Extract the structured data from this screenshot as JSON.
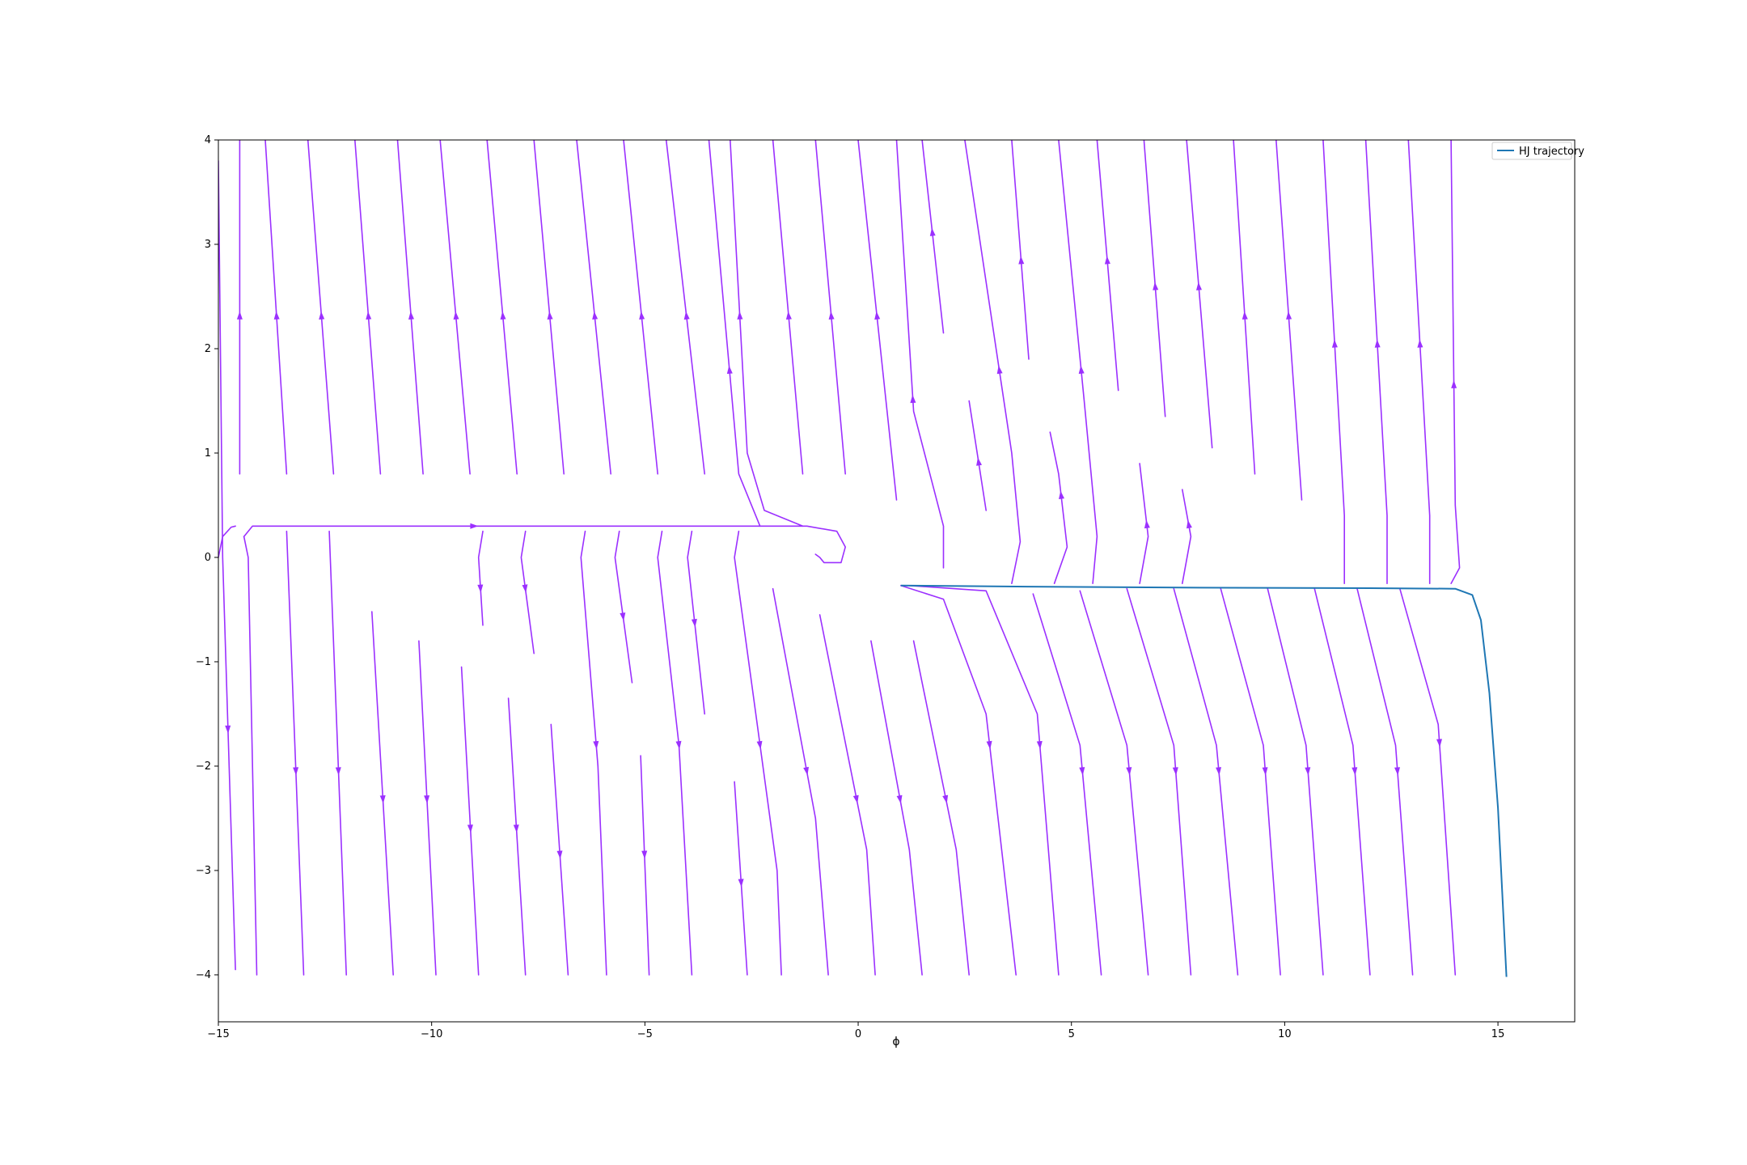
{
  "chart_data": {
    "type": "line",
    "title": "",
    "xlabel": "ϕ",
    "ylabel": "",
    "xlim": [
      -15,
      16.8
    ],
    "ylim": [
      -4.45,
      4
    ],
    "grid": false,
    "legend_position": "top-right",
    "x_ticks": [
      -15,
      -10,
      -5,
      0,
      5,
      10,
      15
    ],
    "x_tick_labels": [
      "−15",
      "−10",
      "−5",
      "0",
      "5",
      "10",
      "15"
    ],
    "y_ticks": [
      -4,
      -3,
      -2,
      -1,
      0,
      1,
      2,
      3,
      4
    ],
    "y_tick_labels": [
      "−4",
      "−3",
      "−2",
      "−1",
      "0",
      "1",
      "2",
      "3",
      "4"
    ],
    "streamline_color": "#9b30ff",
    "series": [
      {
        "name": "HJ trajectory",
        "color": "#1f77b4",
        "x": [
          1.0,
          4.0,
          8.0,
          12.0,
          14.0,
          14.4,
          14.6,
          14.8,
          15.0,
          15.1,
          15.2
        ],
        "y": [
          -0.27,
          -0.28,
          -0.29,
          -0.295,
          -0.3,
          -0.36,
          -0.6,
          -1.3,
          -2.4,
          -3.2,
          -4.02
        ]
      }
    ],
    "streamlines": [
      {
        "x": [
          -14.5,
          -14.5
        ],
        "y": [
          0.8,
          4.0
        ],
        "arrow_y": 2.32
      },
      {
        "x": [
          -13.4,
          -13.9
        ],
        "y": [
          0.8,
          4.0
        ],
        "arrow_y": 2.32
      },
      {
        "x": [
          -12.3,
          -12.9
        ],
        "y": [
          0.8,
          4.0
        ],
        "arrow_y": 2.32
      },
      {
        "x": [
          -11.2,
          -11.8
        ],
        "y": [
          0.8,
          4.0
        ],
        "arrow_y": 2.32
      },
      {
        "x": [
          -10.2,
          -10.8
        ],
        "y": [
          0.8,
          4.0
        ],
        "arrow_y": 2.32
      },
      {
        "x": [
          -9.1,
          -9.8
        ],
        "y": [
          0.8,
          4.0
        ],
        "arrow_y": 2.32
      },
      {
        "x": [
          -8.0,
          -8.7
        ],
        "y": [
          0.8,
          4.0
        ],
        "arrow_y": 2.32
      },
      {
        "x": [
          -6.9,
          -7.6
        ],
        "y": [
          0.8,
          4.0
        ],
        "arrow_y": 2.32
      },
      {
        "x": [
          -5.8,
          -6.6
        ],
        "y": [
          0.8,
          4.0
        ],
        "arrow_y": 2.32
      },
      {
        "x": [
          -4.7,
          -5.5
        ],
        "y": [
          0.8,
          4.0
        ],
        "arrow_y": 2.32
      },
      {
        "x": [
          -3.6,
          -4.5
        ],
        "y": [
          0.8,
          4.0
        ],
        "arrow_y": 2.32
      },
      {
        "x": [
          -2.3,
          -2.8,
          -3.5
        ],
        "y": [
          0.3,
          0.8,
          4.0
        ],
        "arrow_y": 1.8
      },
      {
        "x": [
          -1.3,
          -2.2,
          -2.6,
          -3.0
        ],
        "y": [
          0.3,
          0.45,
          1.0,
          4.0
        ],
        "arrow_y": 2.32
      },
      {
        "x": [
          -1.3,
          -2.0
        ],
        "y": [
          0.8,
          4.0
        ],
        "arrow_y": 2.32
      },
      {
        "x": [
          -0.3,
          -1.0
        ],
        "y": [
          0.8,
          4.0
        ],
        "arrow_y": 2.32
      },
      {
        "x": [
          0.9,
          0.0
        ],
        "y": [
          0.55,
          4.0
        ],
        "arrow_y": 2.32
      },
      {
        "x": [
          2.0,
          2.0,
          1.3,
          0.9
        ],
        "y": [
          -0.1,
          0.3,
          1.4,
          4.0
        ],
        "arrow_y": 1.52
      },
      {
        "x": [
          2.0,
          1.5
        ],
        "y": [
          2.15,
          4.0
        ],
        "arrow_y": 3.12
      },
      {
        "x": [
          3.0,
          2.6
        ],
        "y": [
          0.45,
          1.5
        ],
        "arrow_y": 0.92
      },
      {
        "x": [
          3.6,
          3.8,
          3.6,
          2.5
        ],
        "y": [
          -0.25,
          0.15,
          1.0,
          4.0
        ],
        "arrow_y": 1.8
      },
      {
        "x": [
          4.0,
          3.6
        ],
        "y": [
          1.9,
          4.0
        ],
        "arrow_y": 2.85
      },
      {
        "x": [
          4.6,
          4.9,
          4.7,
          4.5
        ],
        "y": [
          -0.25,
          0.1,
          0.8,
          1.2
        ],
        "arrow_y": 0.6
      },
      {
        "x": [
          5.5,
          5.6,
          5.3,
          4.7
        ],
        "y": [
          -0.25,
          0.2,
          1.5,
          4.0
        ],
        "arrow_y": 1.8
      },
      {
        "x": [
          6.1,
          5.6
        ],
        "y": [
          1.6,
          4.0
        ],
        "arrow_y": 2.85
      },
      {
        "x": [
          6.6,
          6.8,
          6.6
        ],
        "y": [
          -0.25,
          0.2,
          0.9
        ],
        "arrow_y": 0.32
      },
      {
        "x": [
          7.2,
          6.7
        ],
        "y": [
          1.35,
          4.0
        ],
        "arrow_y": 2.6
      },
      {
        "x": [
          7.6,
          7.8,
          7.6
        ],
        "y": [
          -0.25,
          0.2,
          0.65
        ],
        "arrow_y": 0.32
      },
      {
        "x": [
          8.3,
          7.7
        ],
        "y": [
          1.05,
          4.0
        ],
        "arrow_y": 2.6
      },
      {
        "x": [
          9.3,
          8.8
        ],
        "y": [
          0.8,
          4.0
        ],
        "arrow_y": 2.32
      },
      {
        "x": [
          10.4,
          9.8
        ],
        "y": [
          0.55,
          4.0
        ],
        "arrow_y": 2.32
      },
      {
        "x": [
          11.4,
          11.4,
          10.9
        ],
        "y": [
          -0.25,
          0.4,
          4.0
        ],
        "arrow_y": 2.05
      },
      {
        "x": [
          12.4,
          12.4,
          11.9
        ],
        "y": [
          -0.25,
          0.4,
          4.0
        ],
        "arrow_y": 2.05
      },
      {
        "x": [
          13.4,
          13.4,
          12.9
        ],
        "y": [
          -0.25,
          0.4,
          4.0
        ],
        "arrow_y": 2.05
      },
      {
        "x": [
          13.9,
          14.1,
          14.0,
          13.9
        ],
        "y": [
          -0.25,
          -0.1,
          0.5,
          4.0
        ],
        "arrow_y": 1.66
      },
      {
        "x": [
          -15.0,
          -14.9,
          -14.6
        ],
        "y": [
          3.8,
          0.0,
          -3.95
        ],
        "arrow_y": -1.65
      },
      {
        "x": [
          -15.0,
          -14.9,
          -14.7,
          -14.6
        ],
        "y": [
          0.0,
          0.2,
          0.29,
          0.3
        ],
        "arrow_y": null
      },
      {
        "x": [
          -14.4,
          -14.3,
          -14.1
        ],
        "y": [
          0.2,
          0.0,
          -4.0
        ],
        "arrow_y": null
      },
      {
        "x": [
          -14.4,
          -14.2,
          -2.3,
          -1.2,
          -0.5,
          -0.3,
          -0.4,
          -0.8,
          -0.9,
          -1.0
        ],
        "y": [
          0.2,
          0.3,
          0.3,
          0.3,
          0.25,
          0.1,
          -0.05,
          -0.05,
          0.0,
          0.03
        ],
        "arrow_x": -9.0
      },
      {
        "x": [
          -13.4,
          -13.0
        ],
        "y": [
          0.25,
          -4.0
        ],
        "arrow_y": -2.05
      },
      {
        "x": [
          -12.4,
          -12.0
        ],
        "y": [
          0.25,
          -4.0
        ],
        "arrow_y": -2.05
      },
      {
        "x": [
          -11.4,
          -10.9
        ],
        "y": [
          -0.52,
          -4.0
        ],
        "arrow_y": -2.32
      },
      {
        "x": [
          -10.3,
          -9.9
        ],
        "y": [
          -0.8,
          -4.0
        ],
        "arrow_y": -2.32
      },
      {
        "x": [
          -9.3,
          -8.9
        ],
        "y": [
          -1.05,
          -4.0
        ],
        "arrow_y": -2.6
      },
      {
        "x": [
          -8.8,
          -8.9,
          -8.8
        ],
        "y": [
          0.25,
          0.0,
          -0.65
        ],
        "arrow_y": -0.3
      },
      {
        "x": [
          -8.2,
          -7.8
        ],
        "y": [
          -1.35,
          -4.0
        ],
        "arrow_y": -2.6
      },
      {
        "x": [
          -7.8,
          -7.9,
          -7.6
        ],
        "y": [
          0.25,
          0.0,
          -0.92
        ],
        "arrow_y": -0.3
      },
      {
        "x": [
          -7.2,
          -6.8
        ],
        "y": [
          -1.6,
          -4.0
        ],
        "arrow_y": -2.85
      },
      {
        "x": [
          -6.4,
          -6.5,
          -6.1,
          -5.9
        ],
        "y": [
          0.25,
          0.0,
          -2.0,
          -4.0
        ],
        "arrow_y": -1.8
      },
      {
        "x": [
          -5.6,
          -5.7,
          -5.3
        ],
        "y": [
          0.25,
          0.0,
          -1.2
        ],
        "arrow_y": -0.57
      },
      {
        "x": [
          -5.1,
          -4.9
        ],
        "y": [
          -1.9,
          -4.0
        ],
        "arrow_y": -2.85
      },
      {
        "x": [
          -4.6,
          -4.7,
          -4.2,
          -3.9
        ],
        "y": [
          0.25,
          0.0,
          -1.8,
          -4.0
        ],
        "arrow_y": -1.8
      },
      {
        "x": [
          -3.9,
          -4.0,
          -3.6
        ],
        "y": [
          0.25,
          0.0,
          -1.5
        ],
        "arrow_y": -0.63
      },
      {
        "x": [
          -2.9,
          -2.6
        ],
        "y": [
          -2.15,
          -4.0
        ],
        "arrow_y": -3.12
      },
      {
        "x": [
          -2.8,
          -2.9,
          -2.4,
          -1.9,
          -1.8
        ],
        "y": [
          0.25,
          0.0,
          -1.5,
          -3.0,
          -4.0
        ],
        "arrow_y": -1.8
      },
      {
        "x": [
          -2.0,
          -1.0,
          -0.7
        ],
        "y": [
          -0.3,
          -2.5,
          -4.0
        ],
        "arrow_y": -2.05
      },
      {
        "x": [
          -0.9,
          0.2,
          0.4
        ],
        "y": [
          -0.55,
          -2.8,
          -4.0
        ],
        "arrow_y": -2.32
      },
      {
        "x": [
          0.3,
          1.2,
          1.5
        ],
        "y": [
          -0.8,
          -2.8,
          -4.0
        ],
        "arrow_y": -2.32
      },
      {
        "x": [
          1.3,
          2.3,
          2.6
        ],
        "y": [
          -0.8,
          -2.8,
          -4.0
        ],
        "arrow_y": -2.32
      },
      {
        "x": [
          1.0,
          2.0,
          3.0,
          3.7
        ],
        "y": [
          -0.27,
          -0.4,
          -1.5,
          -4.0
        ],
        "arrow_y": -1.8
      },
      {
        "x": [
          1.2,
          3.0,
          4.2,
          4.7
        ],
        "y": [
          -0.27,
          -0.32,
          -1.5,
          -4.0
        ],
        "arrow_y": -1.8
      },
      {
        "x": [
          4.1,
          5.2,
          5.7
        ],
        "y": [
          -0.35,
          -1.8,
          -4.0
        ],
        "arrow_y": -2.05
      },
      {
        "x": [
          5.2,
          6.3,
          6.8
        ],
        "y": [
          -0.32,
          -1.8,
          -4.0
        ],
        "arrow_y": -2.05
      },
      {
        "x": [
          6.3,
          7.4,
          7.8
        ],
        "y": [
          -0.3,
          -1.8,
          -4.0
        ],
        "arrow_y": -2.05
      },
      {
        "x": [
          7.4,
          8.4,
          8.9
        ],
        "y": [
          -0.3,
          -1.8,
          -4.0
        ],
        "arrow_y": -2.05
      },
      {
        "x": [
          8.5,
          9.5,
          9.9
        ],
        "y": [
          -0.3,
          -1.8,
          -4.0
        ],
        "arrow_y": -2.05
      },
      {
        "x": [
          9.6,
          10.5,
          10.9
        ],
        "y": [
          -0.3,
          -1.8,
          -4.0
        ],
        "arrow_y": -2.05
      },
      {
        "x": [
          10.7,
          11.6,
          12.0
        ],
        "y": [
          -0.3,
          -1.8,
          -4.0
        ],
        "arrow_y": -2.05
      },
      {
        "x": [
          11.7,
          12.6,
          13.0
        ],
        "y": [
          -0.3,
          -1.8,
          -4.0
        ],
        "arrow_y": -2.05
      },
      {
        "x": [
          12.7,
          13.6,
          14.0
        ],
        "y": [
          -0.3,
          -1.6,
          -4.0
        ],
        "arrow_y": -1.78
      }
    ]
  }
}
